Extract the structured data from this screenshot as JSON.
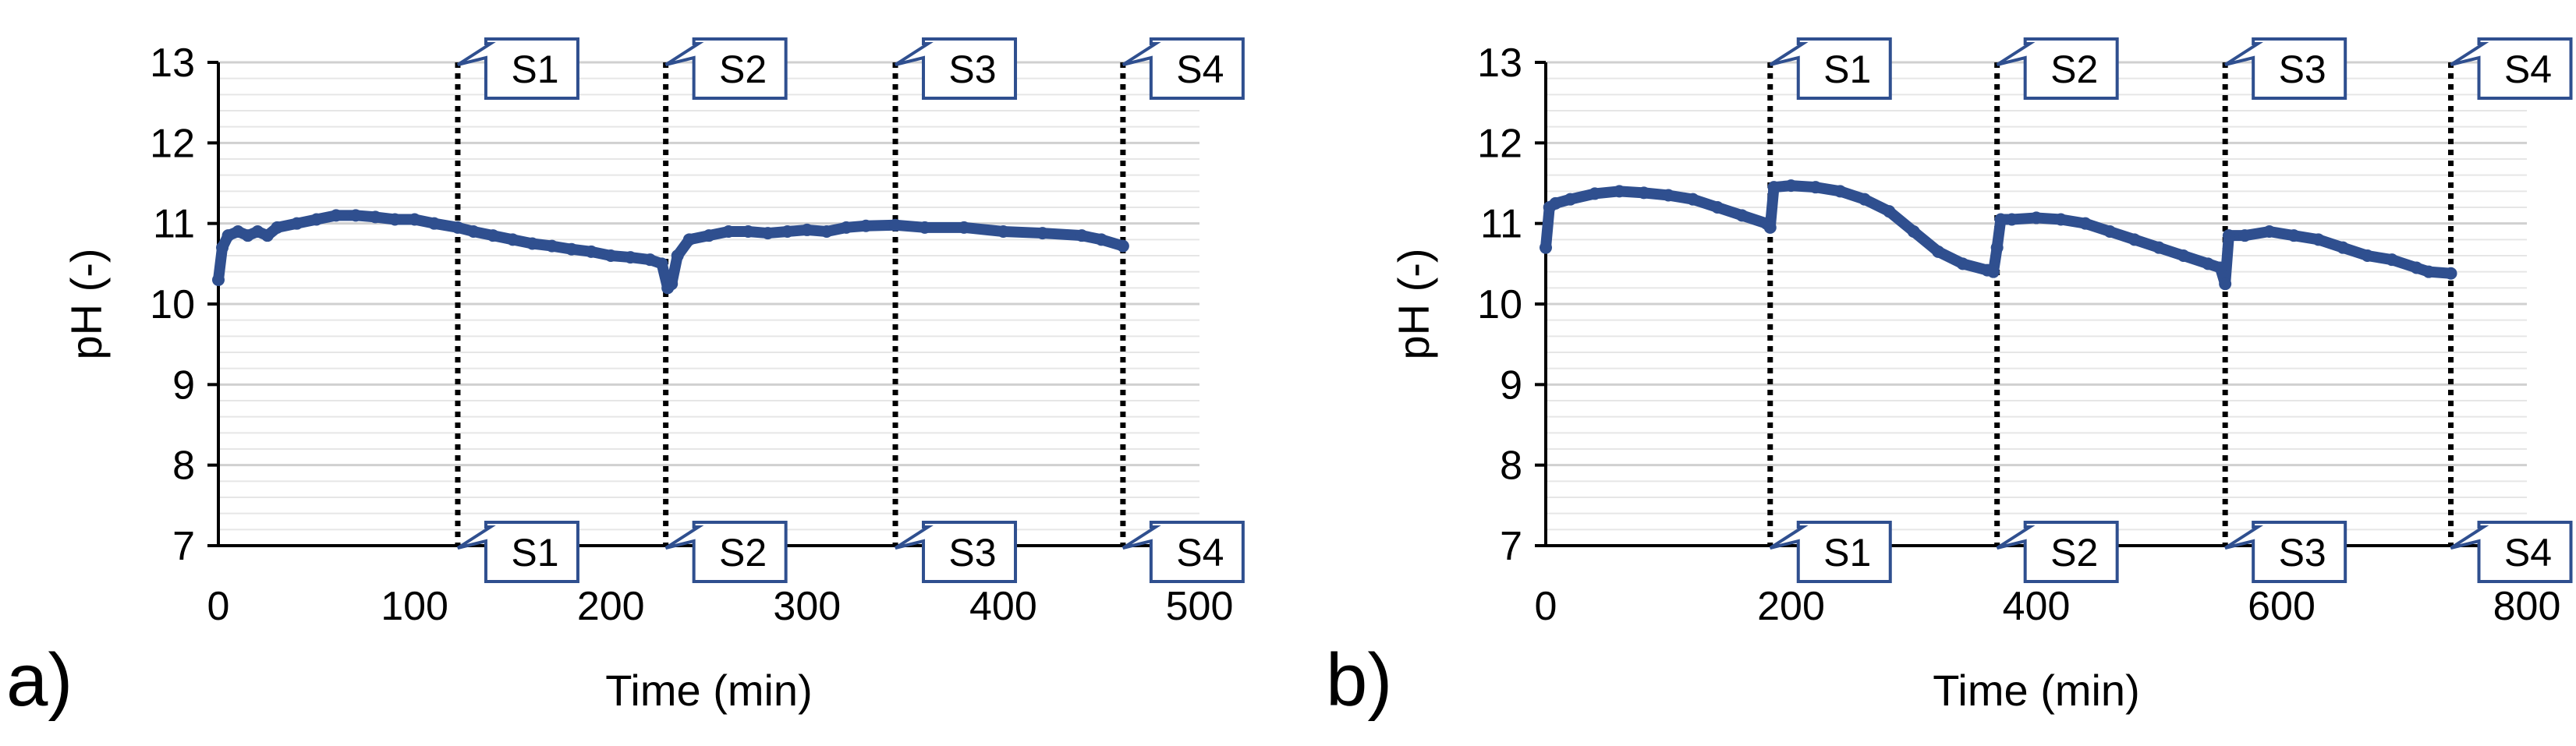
{
  "figure": {
    "panel_labels": [
      "a)",
      "b)"
    ]
  },
  "colors": {
    "series": "#2f4f8f",
    "grid_major": "#d0d0d0",
    "grid_minor": "#e6e6e6",
    "axis": "#000000",
    "callout_stroke": "#2f4f8f"
  },
  "chart_data": [
    {
      "type": "line",
      "panel": "a)",
      "title": "",
      "xlabel": "Time (min)",
      "ylabel": "pH (-)",
      "xlim": [
        0,
        500
      ],
      "ylim": [
        7,
        13
      ],
      "xticks": [
        0,
        100,
        200,
        300,
        400,
        500
      ],
      "yticks": [
        7,
        8,
        9,
        10,
        11,
        12,
        13
      ],
      "grid": true,
      "stage_markers": [
        {
          "x": 122,
          "label": "S1"
        },
        {
          "x": 228,
          "label": "S2"
        },
        {
          "x": 345,
          "label": "S3"
        },
        {
          "x": 461,
          "label": "S4"
        }
      ],
      "series": [
        {
          "name": "pH",
          "x": [
            0,
            2,
            5,
            10,
            15,
            20,
            25,
            30,
            40,
            50,
            60,
            70,
            80,
            90,
            100,
            110,
            122,
            130,
            140,
            150,
            160,
            170,
            180,
            190,
            200,
            210,
            220,
            226,
            229,
            231,
            234,
            240,
            250,
            260,
            270,
            280,
            290,
            300,
            310,
            320,
            330,
            345,
            360,
            380,
            400,
            420,
            440,
            450,
            461
          ],
          "y": [
            10.3,
            10.7,
            10.85,
            10.9,
            10.85,
            10.9,
            10.85,
            10.95,
            11.0,
            11.05,
            11.1,
            11.1,
            11.08,
            11.05,
            11.05,
            11.0,
            10.95,
            10.9,
            10.85,
            10.8,
            10.75,
            10.72,
            10.68,
            10.65,
            10.6,
            10.58,
            10.55,
            10.5,
            10.2,
            10.25,
            10.6,
            10.8,
            10.85,
            10.9,
            10.9,
            10.88,
            10.9,
            10.92,
            10.9,
            10.95,
            10.97,
            10.98,
            10.95,
            10.95,
            10.9,
            10.88,
            10.85,
            10.8,
            10.72
          ]
        }
      ]
    },
    {
      "type": "line",
      "panel": "b)",
      "title": "",
      "xlabel": "Time (min)",
      "ylabel": "pH (-)",
      "xlim": [
        0,
        800
      ],
      "ylim": [
        7,
        13
      ],
      "xticks": [
        0,
        200,
        400,
        600,
        800
      ],
      "yticks": [
        7,
        8,
        9,
        10,
        11,
        12,
        13
      ],
      "grid": true,
      "stage_markers": [
        {
          "x": 183,
          "label": "S1"
        },
        {
          "x": 368,
          "label": "S2"
        },
        {
          "x": 554,
          "label": "S3"
        },
        {
          "x": 738,
          "label": "S4"
        }
      ],
      "series": [
        {
          "name": "pH",
          "x": [
            0,
            3,
            8,
            20,
            40,
            60,
            80,
            100,
            120,
            140,
            160,
            180,
            183,
            186,
            200,
            220,
            240,
            260,
            280,
            300,
            320,
            340,
            360,
            365,
            368,
            371,
            380,
            400,
            420,
            440,
            460,
            480,
            500,
            520,
            540,
            550,
            554,
            557,
            570,
            590,
            610,
            630,
            650,
            670,
            690,
            710,
            720,
            738
          ],
          "y": [
            10.7,
            11.2,
            11.25,
            11.3,
            11.37,
            11.4,
            11.38,
            11.35,
            11.3,
            11.2,
            11.1,
            11.0,
            10.95,
            11.45,
            11.47,
            11.45,
            11.4,
            11.3,
            11.15,
            10.9,
            10.65,
            10.5,
            10.42,
            10.4,
            10.7,
            11.05,
            11.05,
            11.07,
            11.05,
            11.0,
            10.9,
            10.8,
            10.7,
            10.6,
            10.5,
            10.45,
            10.25,
            10.85,
            10.85,
            10.9,
            10.85,
            10.8,
            10.7,
            10.6,
            10.55,
            10.45,
            10.4,
            10.38
          ]
        }
      ]
    }
  ]
}
